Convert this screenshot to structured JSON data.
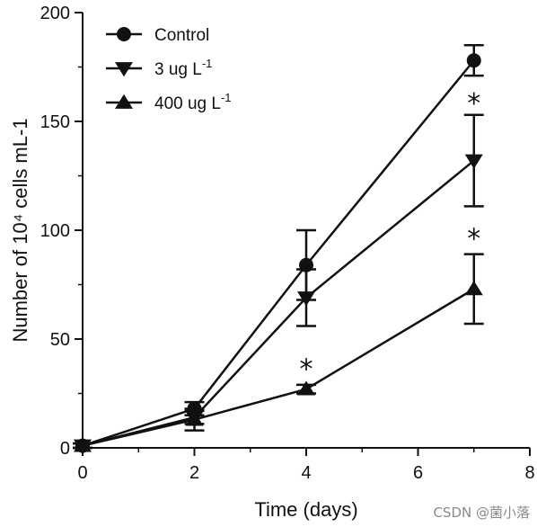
{
  "chart_data": {
    "type": "line",
    "xlabel": "Time (days)",
    "ylabel": "Number of 10⁴ cells mL-1",
    "xlim": [
      0,
      8
    ],
    "ylim": [
      0,
      200
    ],
    "xticks": [
      "0",
      "2",
      "4",
      "6",
      "8"
    ],
    "yticks": [
      "0",
      "50",
      "100",
      "150",
      "200"
    ],
    "grid": false,
    "legend": "top-left",
    "x": [
      0,
      2,
      4,
      7
    ],
    "series": [
      {
        "name": "Control",
        "name_main": "Control",
        "name_sup": "",
        "marker": "circle",
        "values": [
          1,
          18,
          84,
          178
        ],
        "error": [
          1,
          3,
          16,
          7
        ]
      },
      {
        "name": "3 ug L-1",
        "name_main": "3 ug L",
        "name_sup": "-1",
        "marker": "triangle-down",
        "values": [
          1,
          14,
          69,
          132
        ],
        "error": [
          1,
          3,
          13,
          21
        ]
      },
      {
        "name": "400 ug L-1",
        "name_main": "400 ug L",
        "name_sup": "-1",
        "marker": "triangle-up",
        "values": [
          1,
          13,
          27,
          73
        ],
        "error": [
          1,
          5,
          2,
          16
        ]
      }
    ],
    "annotations": [
      {
        "text": "*",
        "x": 4,
        "y": 37
      },
      {
        "text": "*",
        "x": 7,
        "y": 159
      },
      {
        "text": "*",
        "x": 7,
        "y": 97
      }
    ]
  },
  "watermark": "CSDN @菌小落",
  "colors": {
    "line": "#111111",
    "background": "#ffffff",
    "watermark": "#8a8a8a"
  }
}
